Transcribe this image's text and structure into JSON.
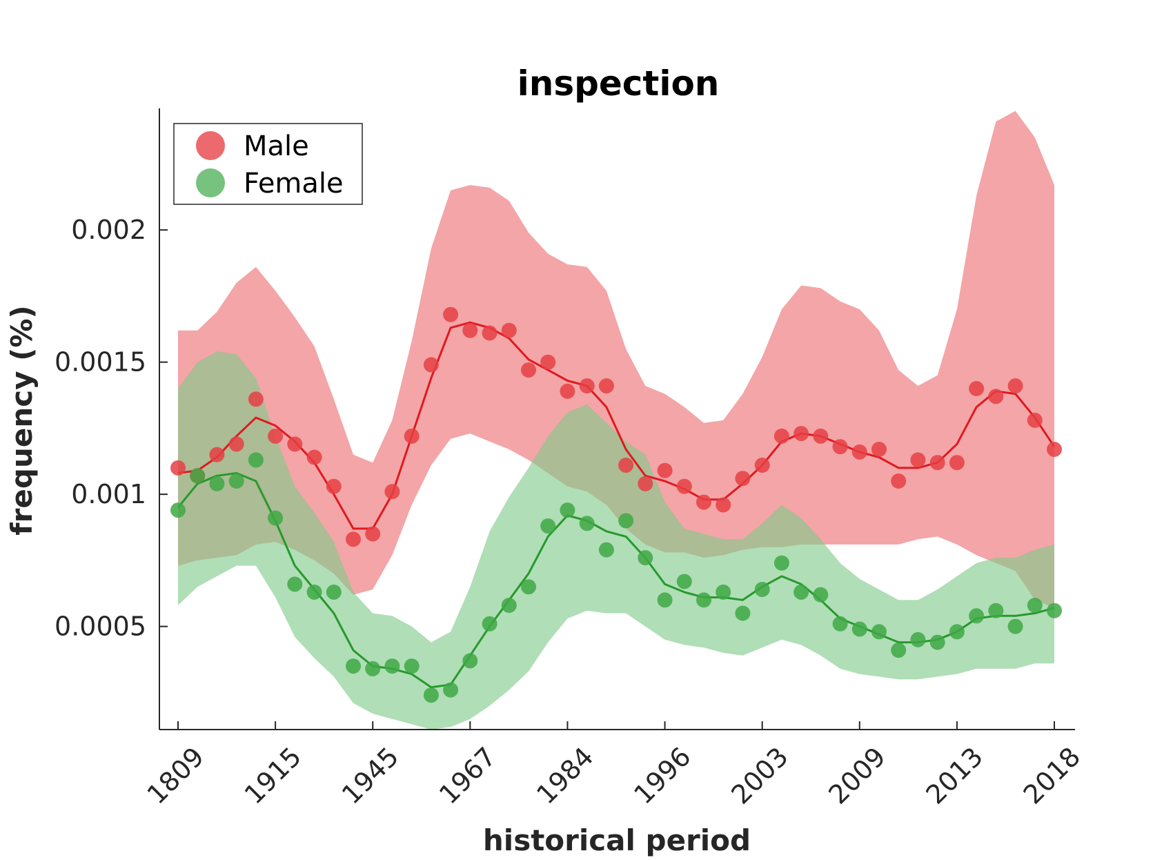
{
  "chart_data": {
    "type": "line",
    "title": "inspection",
    "xlabel": "historical period",
    "ylabel": "frequency (%)",
    "x_tick_labels": [
      "1809",
      "1915",
      "1945",
      "1967",
      "1984",
      "1996",
      "2003",
      "2009",
      "2013",
      "2018"
    ],
    "y_ticks": [
      0.0005,
      0.001,
      0.0015,
      0.002
    ],
    "y_tick_labels": [
      "0.0005",
      "0.001",
      "0.0015",
      "0.002"
    ],
    "ylim": [
      0.00011,
      0.00246
    ],
    "grid": false,
    "legend_position": "top-left",
    "series": [
      {
        "name": "Male",
        "color": "#e0191e",
        "band_color": "#ee7a7e",
        "marker_color": "#e53f44",
        "points": [
          0.0011,
          0.00107,
          0.00115,
          0.00119,
          0.00136,
          0.00122,
          0.00119,
          0.00114,
          0.00103,
          0.00083,
          0.00085,
          0.00101,
          0.00122,
          0.00149,
          0.00168,
          0.00162,
          0.00161,
          0.00162,
          0.00147,
          0.0015,
          0.00139,
          0.00141,
          0.00141,
          0.00111,
          0.00104,
          0.00109,
          0.00103,
          0.00097,
          0.00096,
          0.00106,
          0.00111,
          0.00122,
          0.00123,
          0.00122,
          0.00118,
          0.00116,
          0.00117,
          0.00105,
          0.00113,
          0.00112,
          0.00112,
          0.0014,
          0.00137,
          0.00141,
          0.00128,
          0.00117
        ],
        "line": [
          0.00108,
          0.00109,
          0.00114,
          0.00122,
          0.00129,
          0.00126,
          0.0012,
          0.00112,
          0.001,
          0.00087,
          0.00087,
          0.001,
          0.00122,
          0.00144,
          0.00163,
          0.00165,
          0.00163,
          0.00159,
          0.00151,
          0.00147,
          0.00143,
          0.00141,
          0.00133,
          0.00117,
          0.00107,
          0.00105,
          0.00102,
          0.00098,
          0.00098,
          0.00104,
          0.00111,
          0.0012,
          0.00123,
          0.00122,
          0.00119,
          0.00116,
          0.00114,
          0.0011,
          0.0011,
          0.00112,
          0.00119,
          0.00133,
          0.00139,
          0.00138,
          0.00129,
          0.00118
        ],
        "band_upper": [
          0.00162,
          0.00162,
          0.00169,
          0.0018,
          0.00186,
          0.00177,
          0.00167,
          0.00156,
          0.00136,
          0.00115,
          0.00112,
          0.00128,
          0.00158,
          0.00193,
          0.00215,
          0.00217,
          0.00216,
          0.00211,
          0.00199,
          0.00191,
          0.00187,
          0.00186,
          0.00177,
          0.00155,
          0.00141,
          0.00138,
          0.00133,
          0.00127,
          0.00128,
          0.00138,
          0.00152,
          0.0017,
          0.00179,
          0.00178,
          0.00173,
          0.0017,
          0.00162,
          0.00147,
          0.00141,
          0.00145,
          0.0017,
          0.00213,
          0.00241,
          0.00245,
          0.00235,
          0.00217
        ],
        "band_lower": [
          0.00073,
          0.00075,
          0.00076,
          0.00077,
          0.00081,
          0.00082,
          0.00079,
          0.00075,
          0.0007,
          0.00062,
          0.00064,
          0.00077,
          0.00096,
          0.00111,
          0.00121,
          0.00123,
          0.0012,
          0.00117,
          0.00113,
          0.00108,
          0.00103,
          0.00101,
          0.00096,
          0.00087,
          0.00081,
          0.00078,
          0.00078,
          0.00076,
          0.00077,
          0.00079,
          0.0008,
          0.0008,
          0.00081,
          0.00081,
          0.00081,
          0.00081,
          0.00081,
          0.00081,
          0.00083,
          0.00084,
          0.00081,
          0.00077,
          0.00074,
          0.00071,
          0.0006,
          0.00057
        ]
      },
      {
        "name": "Female",
        "color": "#26992b",
        "band_color": "#7fc98a",
        "marker_color": "#3fa845",
        "points": [
          0.00094,
          0.00107,
          0.00104,
          0.00105,
          0.00113,
          0.00091,
          0.00066,
          0.00063,
          0.00063,
          0.00035,
          0.00034,
          0.00035,
          0.00035,
          0.00024,
          0.00026,
          0.00037,
          0.00051,
          0.00058,
          0.00065,
          0.00088,
          0.00094,
          0.00089,
          0.00079,
          0.0009,
          0.00076,
          0.0006,
          0.00067,
          0.0006,
          0.00063,
          0.00055,
          0.00064,
          0.00074,
          0.00063,
          0.00062,
          0.00051,
          0.00049,
          0.00048,
          0.00041,
          0.00045,
          0.00044,
          0.00048,
          0.00054,
          0.00056,
          0.0005,
          0.00058,
          0.00056
        ],
        "line": [
          0.00095,
          0.00104,
          0.00107,
          0.00108,
          0.00105,
          0.0009,
          0.00073,
          0.00064,
          0.00055,
          0.00041,
          0.00035,
          0.00034,
          0.00032,
          0.00027,
          0.00028,
          0.00039,
          0.0005,
          0.0006,
          0.0007,
          0.00084,
          0.00092,
          0.0009,
          0.00086,
          0.00084,
          0.00076,
          0.00066,
          0.00063,
          0.00061,
          0.00061,
          0.0006,
          0.00065,
          0.00069,
          0.00066,
          0.0006,
          0.00053,
          0.0005,
          0.00047,
          0.00044,
          0.00044,
          0.00045,
          0.00048,
          0.00053,
          0.00054,
          0.00054,
          0.00055,
          0.00057
        ],
        "band_upper": [
          0.0014,
          0.0015,
          0.00154,
          0.00153,
          0.00144,
          0.00122,
          0.00103,
          0.00093,
          0.00082,
          0.00063,
          0.00055,
          0.00054,
          0.0005,
          0.00044,
          0.00048,
          0.00065,
          0.00086,
          0.00099,
          0.0011,
          0.00122,
          0.00131,
          0.00134,
          0.00127,
          0.0012,
          0.00115,
          0.00097,
          0.00087,
          0.00085,
          0.00083,
          0.00083,
          0.00089,
          0.00096,
          0.00091,
          0.00083,
          0.00074,
          0.00068,
          0.00064,
          0.0006,
          0.0006,
          0.00064,
          0.00069,
          0.00074,
          0.00076,
          0.00076,
          0.00079,
          0.00081
        ],
        "band_lower": [
          0.00058,
          0.00065,
          0.00069,
          0.00073,
          0.00073,
          0.00061,
          0.00046,
          0.00038,
          0.00031,
          0.00021,
          0.00017,
          0.00015,
          0.00013,
          0.00011,
          0.00012,
          0.00015,
          0.0002,
          0.00026,
          0.00033,
          0.00044,
          0.00053,
          0.00056,
          0.00055,
          0.00055,
          0.0005,
          0.00045,
          0.00043,
          0.00042,
          0.0004,
          0.00039,
          0.00042,
          0.00045,
          0.00043,
          0.00039,
          0.00034,
          0.00032,
          0.00031,
          0.0003,
          0.0003,
          0.00031,
          0.00032,
          0.00034,
          0.00034,
          0.00034,
          0.00036,
          0.00036
        ]
      }
    ]
  }
}
